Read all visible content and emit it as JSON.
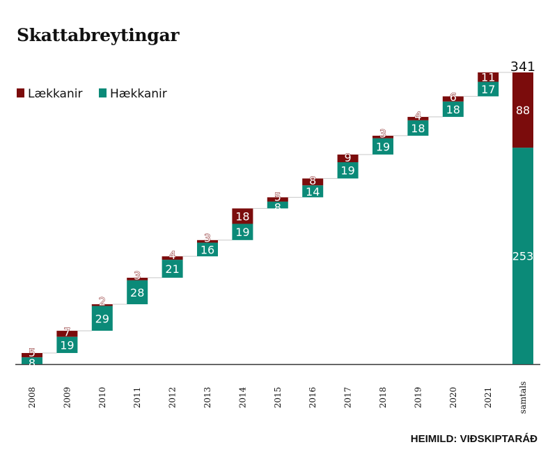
{
  "title": "Skattabreytingar",
  "source": "HEIMILD: VIÐSKIPTARÁÐ",
  "colors": {
    "haekkanir": "#0b8a78",
    "laekkanir": "#7b0c0c",
    "connector": "#c8c8c8",
    "axis": "#333333"
  },
  "chart_data": {
    "type": "bar",
    "subtype": "stacked-waterfall",
    "categories": [
      "2008",
      "2009",
      "2010",
      "2011",
      "2012",
      "2013",
      "2014",
      "2015",
      "2016",
      "2017",
      "2018",
      "2019",
      "2020",
      "2021",
      "samtals"
    ],
    "series": [
      {
        "name": "Hækkanir",
        "values": [
          8,
          19,
          29,
          28,
          21,
          16,
          19,
          8,
          14,
          19,
          19,
          18,
          18,
          17,
          253
        ]
      },
      {
        "name": "Lækkanir",
        "values": [
          5,
          7,
          2,
          3,
          4,
          3,
          18,
          5,
          8,
          9,
          3,
          4,
          6,
          11,
          88
        ]
      }
    ],
    "total": 341,
    "total_label": "341",
    "legend_position": "top-left",
    "ylim": [
      0,
      341
    ],
    "grid": false
  },
  "legend": [
    {
      "name": "Lækkanir",
      "color": "#7b0c0c"
    },
    {
      "name": "Hækkanir",
      "color": "#0b8a78"
    }
  ]
}
